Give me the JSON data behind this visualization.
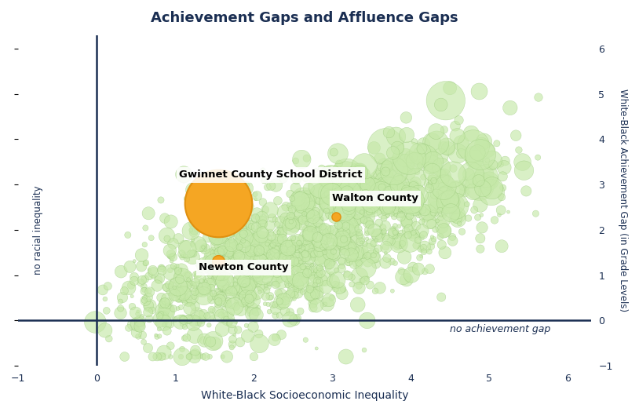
{
  "title": "Achievement Gaps and Affluence Gaps",
  "xlabel": "White-Black Socioeconomic Inequality",
  "ylabel_right": "White-Black Achievement Gap (in Grade Levels)",
  "xlim": [
    -1,
    6.3
  ],
  "ylim": [
    -1,
    6.3
  ],
  "title_color": "#1a2e52",
  "axis_color": "#1a2e52",
  "label_color": "#1a2e52",
  "scatter_color": "#c5e8a8",
  "scatter_edge_color": "#92c472",
  "highlight_color": "#f5a623",
  "highlight_edge_color": "#e09010",
  "no_achieve_label": "no achievement gap",
  "no_racial_label": "no racial inequality",
  "gwinnet_label": "Gwinnet County School District",
  "newton_label": "Newton County",
  "walton_label": "Walton County",
  "gwinnet_x": 1.55,
  "gwinnet_y": 2.58,
  "newton_x": 1.55,
  "newton_y": 1.3,
  "walton_x": 3.05,
  "walton_y": 2.3,
  "gwinnet_size": 3800,
  "newton_size": 130,
  "walton_size": 65,
  "n_background_points": 1500,
  "seed": 42
}
